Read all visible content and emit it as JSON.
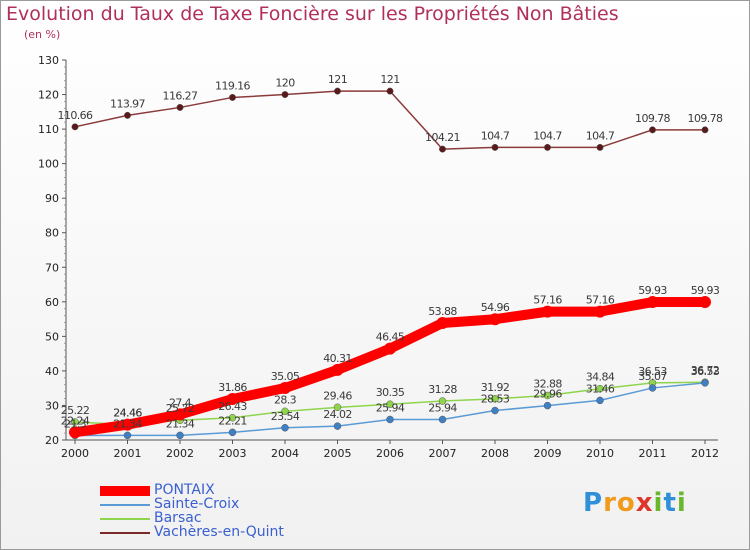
{
  "title": "Evolution du Taux de Taxe Foncière sur les Propriétés Non Bâties",
  "subtitle": "(en %)",
  "logo": {
    "text": "Proxiti"
  },
  "chart_data": {
    "type": "line",
    "x": [
      2000,
      2001,
      2002,
      2003,
      2004,
      2005,
      2006,
      2007,
      2008,
      2009,
      2010,
      2011,
      2012
    ],
    "ylim": [
      20,
      130
    ],
    "yticks": [
      20,
      30,
      40,
      50,
      60,
      70,
      80,
      90,
      100,
      110,
      120,
      130
    ],
    "grid": false,
    "legend_position": "bottom-left",
    "series": [
      {
        "name": "PONTAIX",
        "color": "#ff0000",
        "values": [
          22.24,
          24.46,
          27.4,
          31.86,
          35.05,
          40.31,
          46.45,
          53.88,
          54.96,
          57.16,
          57.16,
          59.93,
          59.93
        ],
        "labels": [
          "22.24",
          "24.46",
          "27.4",
          "31.86",
          "35.05",
          "40.31",
          "46.45",
          "53.88",
          "54.96",
          "57.16",
          "57.16",
          "59.93",
          "59.93"
        ]
      },
      {
        "name": "Sainte-Croix",
        "color": "#5a9bd5",
        "values": [
          21.3,
          21.34,
          21.34,
          22.21,
          23.54,
          24.02,
          25.94,
          25.94,
          28.53,
          29.96,
          31.46,
          35.07,
          36.53
        ],
        "labels": [
          "21.3",
          "21.34",
          "21.34",
          "22.21",
          "23.54",
          "24.02",
          "25.94",
          "25.94",
          "28.53",
          "29.96",
          "31.46",
          "35.07",
          "36.53"
        ]
      },
      {
        "name": "Barsac",
        "color": "#8ed44c",
        "values": [
          25.22,
          24.46,
          25.72,
          26.43,
          28.3,
          29.46,
          30.35,
          31.28,
          31.92,
          32.88,
          34.84,
          36.53,
          36.72
        ],
        "labels": [
          "25.22",
          "24.46",
          "25.72",
          "26.43",
          "28.3",
          "29.46",
          "30.35",
          "31.28",
          "31.92",
          "32.88",
          "34.84",
          "36.53",
          "36.72"
        ]
      },
      {
        "name": "Vachères-en-Quint",
        "color": "#7b2a2a",
        "values": [
          110.66,
          113.97,
          116.27,
          119.16,
          120,
          121,
          121,
          104.21,
          104.7,
          104.7,
          104.7,
          109.78,
          109.78
        ],
        "labels": [
          "110.66",
          "113.97",
          "116.27",
          "119.16",
          "120",
          "121",
          "121",
          "104.21",
          "104.7",
          "104.7",
          "104.7",
          "109.78",
          "109.78"
        ]
      }
    ]
  }
}
